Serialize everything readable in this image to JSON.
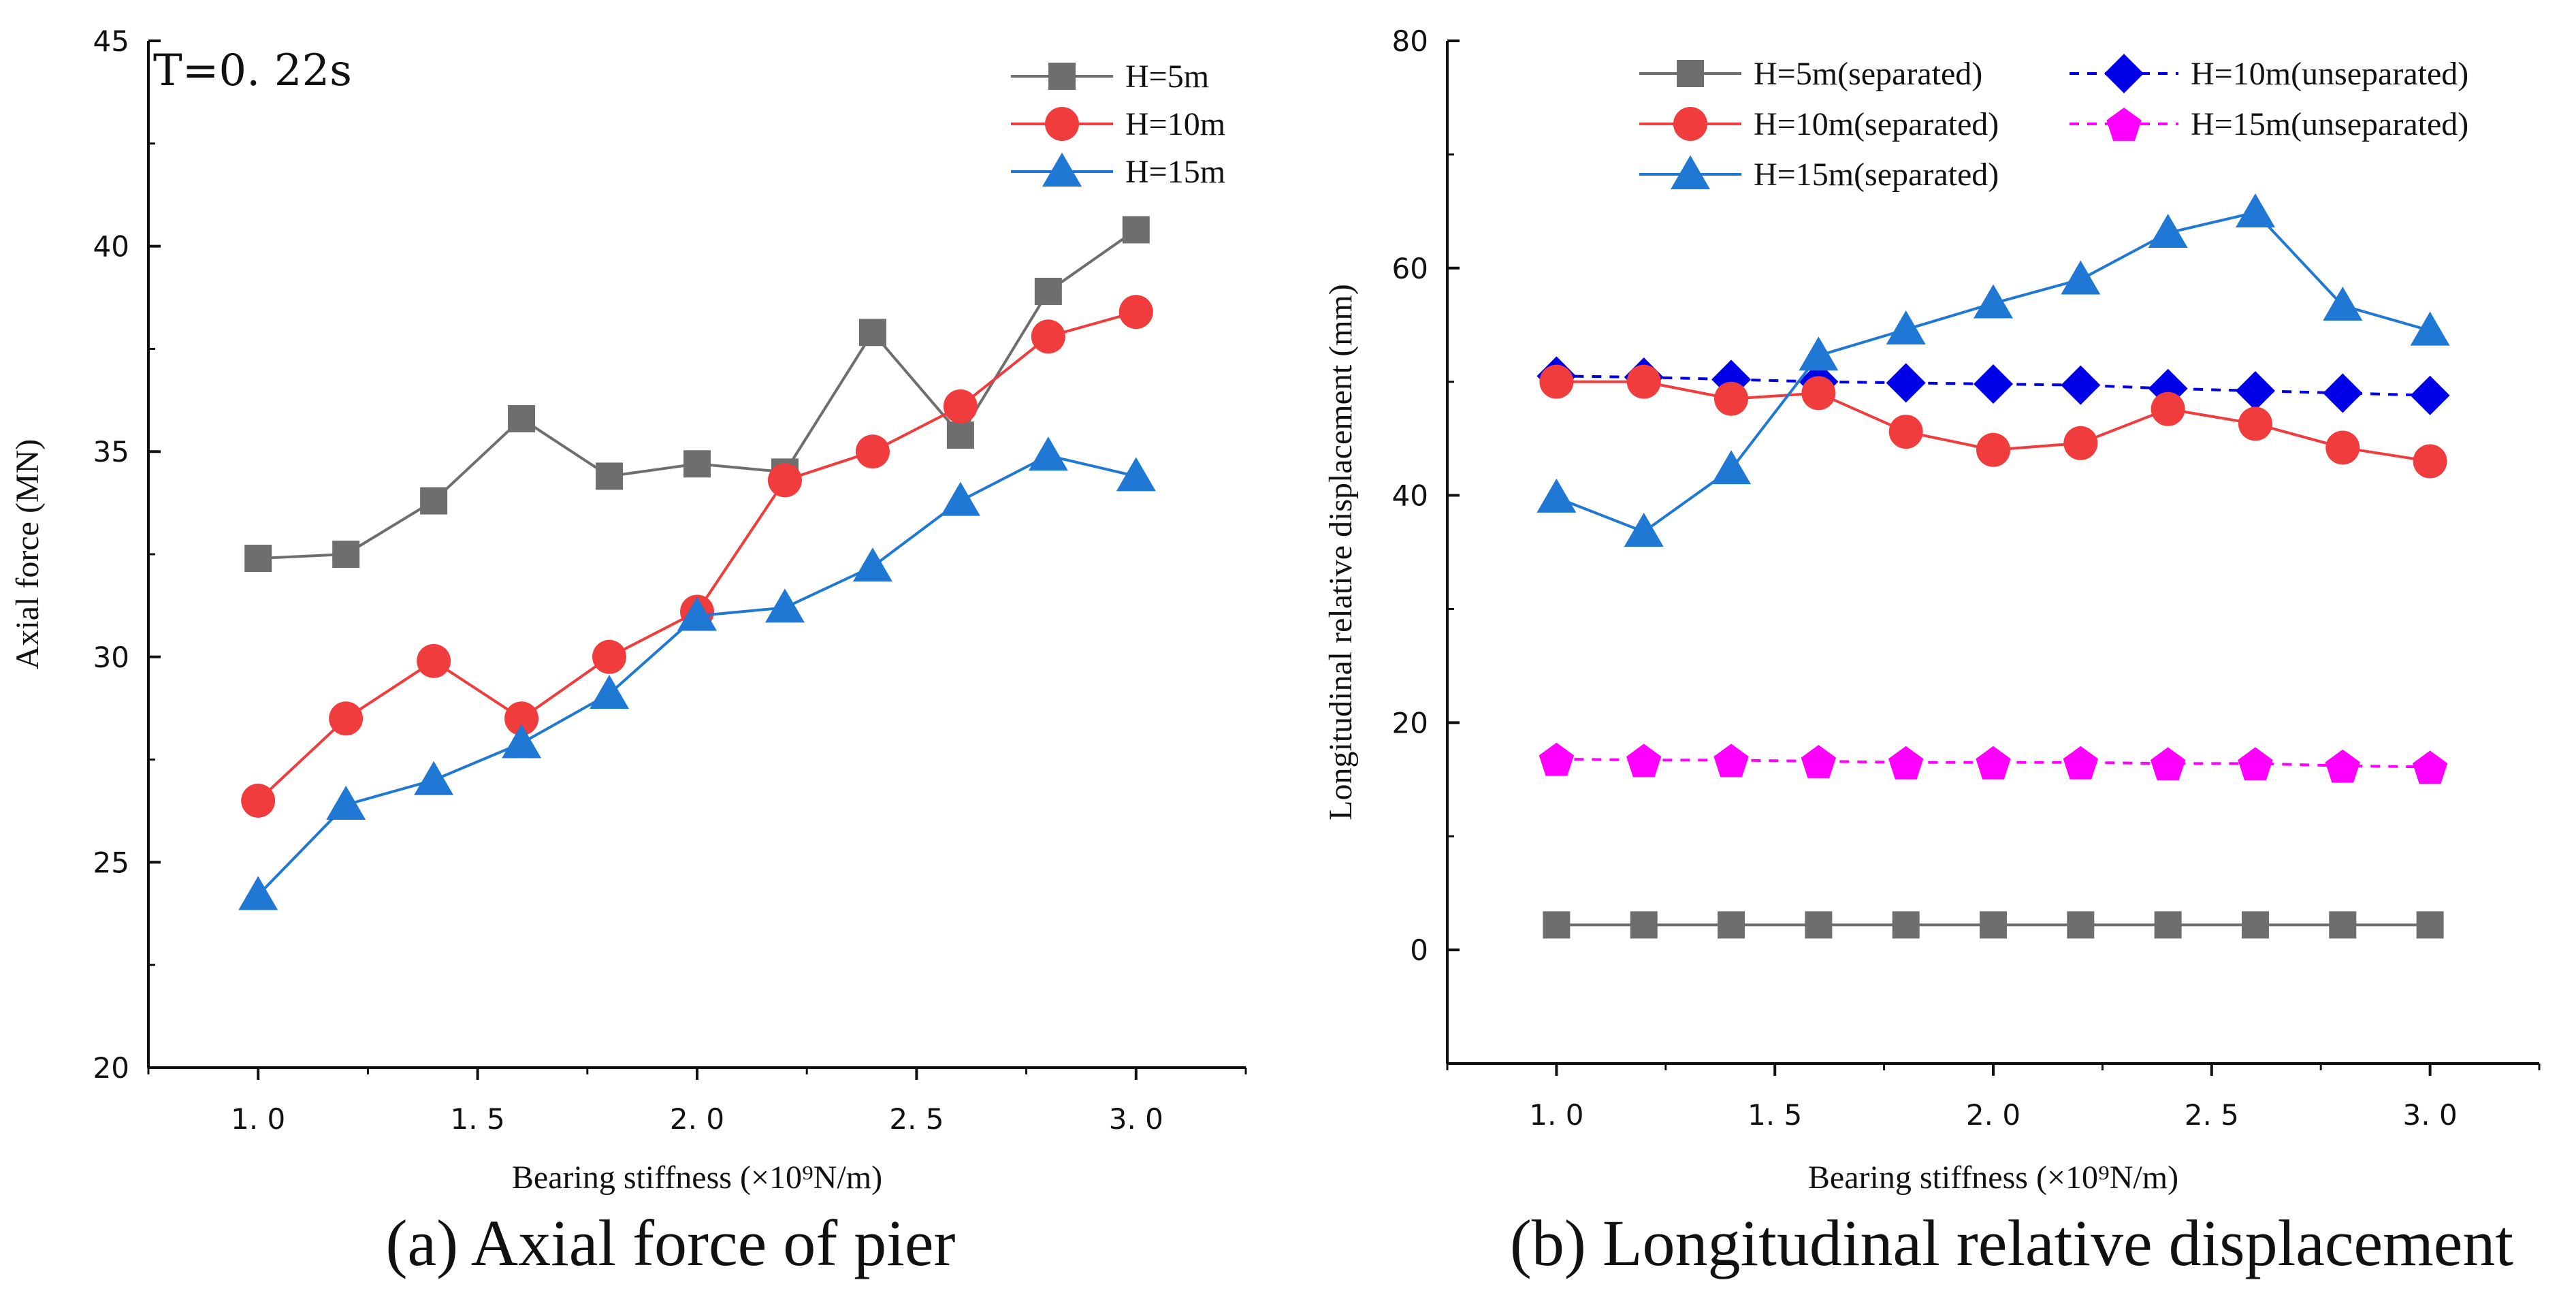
{
  "chart_data": [
    {
      "type": "line",
      "caption": "(a) Axial force of pier",
      "annotation": "T=0. 22s",
      "xlabel": "Bearing stiffness (×10⁹N/m)",
      "ylabel": "Axial force (MN)",
      "xlim": [
        0.75,
        3.25
      ],
      "ylim": [
        20,
        45
      ],
      "xticks": [
        1.0,
        1.5,
        2.0,
        2.5,
        3.0
      ],
      "xtick_labels": [
        "1. 0",
        "1. 5",
        "2. 0",
        "2. 5",
        "3. 0"
      ],
      "yticks": [
        20,
        25,
        30,
        35,
        40,
        45
      ],
      "ytick_labels": [
        "20",
        "25",
        "30",
        "35",
        "40",
        "45"
      ],
      "legend_position": "top-right",
      "x": [
        1.0,
        1.2,
        1.4,
        1.6,
        1.8,
        2.0,
        2.2,
        2.4,
        2.6,
        2.8,
        3.0
      ],
      "series": [
        {
          "name": "H=5m",
          "color": "#6e6e6e",
          "marker": "square",
          "dash": false,
          "values": [
            32.4,
            32.5,
            33.8,
            35.8,
            34.4,
            34.7,
            34.5,
            37.9,
            35.4,
            38.9,
            40.4
          ]
        },
        {
          "name": "H=10m",
          "color": "#f03c3c",
          "marker": "circle",
          "dash": false,
          "values": [
            26.5,
            28.5,
            29.9,
            28.5,
            30.0,
            31.1,
            34.3,
            35.0,
            36.1,
            37.8,
            38.4
          ]
        },
        {
          "name": "H=15m",
          "color": "#1f78d4",
          "marker": "triangle",
          "dash": false,
          "values": [
            24.2,
            26.4,
            27.0,
            27.9,
            29.1,
            31.0,
            31.2,
            32.2,
            33.8,
            34.9,
            34.4
          ]
        }
      ]
    },
    {
      "type": "line",
      "caption": "(b) Longitudinal relative displacement",
      "xlabel": "Bearing stiffness (×10⁹N/m)",
      "ylabel": "Longitudinal relative displacement (mm)",
      "xlim": [
        0.75,
        3.25
      ],
      "ylim": [
        -10,
        80
      ],
      "xticks": [
        1.0,
        1.5,
        2.0,
        2.5,
        3.0
      ],
      "xtick_labels": [
        "1. 0",
        "1. 5",
        "2. 0",
        "2. 5",
        "3. 0"
      ],
      "yticks": [
        0,
        20,
        40,
        60,
        80
      ],
      "ytick_labels": [
        "0",
        "20",
        "40",
        "60",
        "80"
      ],
      "legend_position": "top",
      "x": [
        1.0,
        1.2,
        1.4,
        1.6,
        1.8,
        2.0,
        2.2,
        2.4,
        2.6,
        2.8,
        3.0
      ],
      "series": [
        {
          "name": "H=5m(separated)",
          "color": "#6e6e6e",
          "marker": "square",
          "dash": false,
          "values": [
            2.2,
            2.2,
            2.2,
            2.2,
            2.2,
            2.2,
            2.2,
            2.2,
            2.2,
            2.2,
            2.2
          ]
        },
        {
          "name": "H=10m(unseparated)",
          "color": "#0000e8",
          "marker": "diamond",
          "dash": true,
          "values": [
            50.5,
            50.4,
            50.2,
            50.0,
            49.9,
            49.8,
            49.7,
            49.4,
            49.2,
            49.0,
            48.8
          ]
        },
        {
          "name": "H=10m(separated)",
          "color": "#f03c3c",
          "marker": "circle",
          "dash": false,
          "values": [
            50.0,
            50.0,
            48.5,
            49.0,
            45.6,
            44.0,
            44.6,
            47.6,
            46.3,
            44.2,
            43.0
          ]
        },
        {
          "name": "H=15m(unseparated)",
          "color": "#ff00ff",
          "marker": "pentagon",
          "dash": true,
          "values": [
            16.8,
            16.7,
            16.7,
            16.6,
            16.5,
            16.5,
            16.5,
            16.4,
            16.4,
            16.2,
            16.1
          ]
        },
        {
          "name": "H=15m(separated)",
          "color": "#1f78d4",
          "marker": "triangle",
          "dash": false,
          "values": [
            39.8,
            36.8,
            42.3,
            52.3,
            54.6,
            56.9,
            59.0,
            63.1,
            64.9,
            56.7,
            54.5
          ]
        }
      ]
    }
  ]
}
